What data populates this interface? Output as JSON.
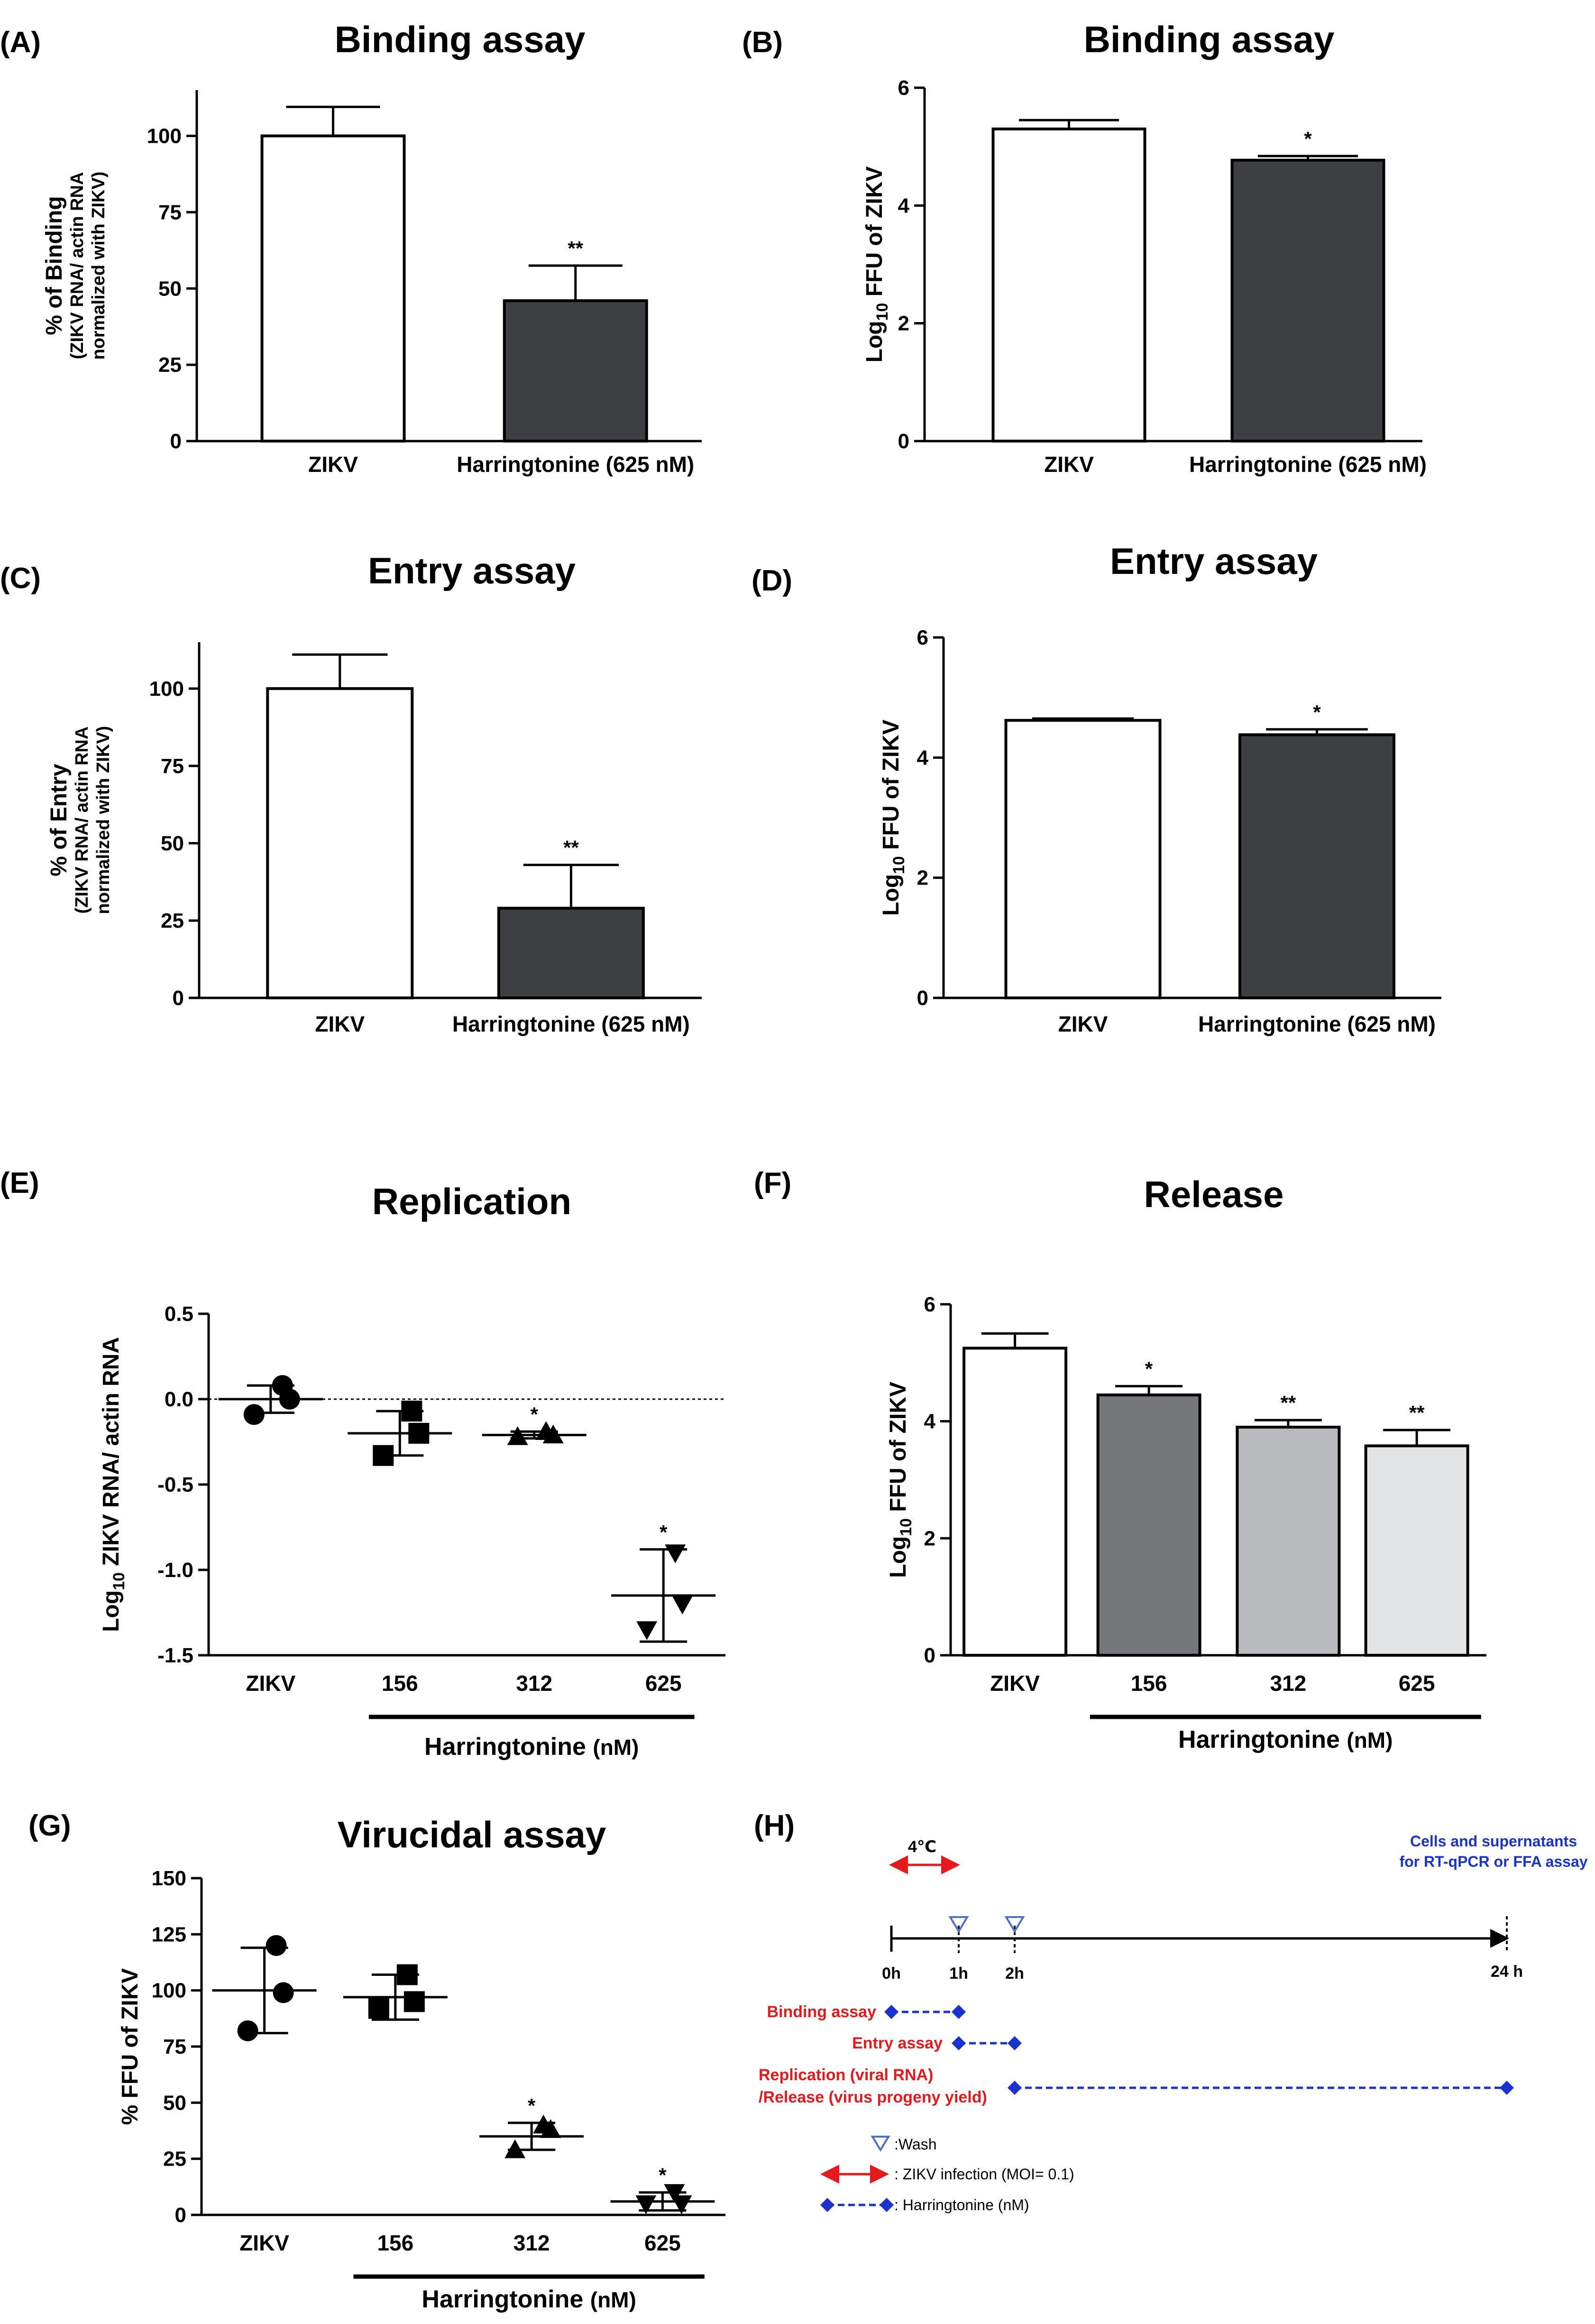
{
  "panel_labels": [
    "(A)",
    "(B)",
    "(C)",
    "(D)",
    "(E)",
    "(F)",
    "(G)",
    "(H)"
  ],
  "chart_data": [
    {
      "id": "A",
      "type": "bar",
      "title": "Binding assay",
      "ylabel_lines": [
        "% of Binding",
        "(ZIKV RNA/ actin RNA",
        "normalized with ZIKV)"
      ],
      "categories": [
        "ZIKV",
        "Harringtonine (625 nM)"
      ],
      "values": [
        100,
        46
      ],
      "errors": [
        9.5,
        11.5
      ],
      "significance": [
        "",
        "**"
      ],
      "fill": [
        "#ffffff",
        "#3d3f42"
      ],
      "ylim": [
        0,
        115
      ],
      "yticks": [
        0,
        25,
        50,
        75,
        100
      ]
    },
    {
      "id": "B",
      "type": "bar",
      "title": "Binding assay",
      "ylabel_lines": [
        "Log",
        "10",
        " FFU of ZIKV"
      ],
      "categories": [
        "ZIKV",
        "Harringtonine (625 nM)"
      ],
      "values": [
        5.3,
        4.77
      ],
      "errors": [
        0.15,
        0.07
      ],
      "significance": [
        "",
        "*"
      ],
      "fill": [
        "#ffffff",
        "#3d3f42"
      ],
      "ylim": [
        0,
        6
      ],
      "yticks": [
        0,
        2,
        4,
        6
      ]
    },
    {
      "id": "C",
      "type": "bar",
      "title": "Entry assay",
      "ylabel_lines": [
        "% of Entry",
        "(ZIKV RNA/ actin RNA",
        "normalized with ZIKV)"
      ],
      "categories": [
        "ZIKV",
        "Harringtonine (625 nM)"
      ],
      "values": [
        100,
        29
      ],
      "errors": [
        11,
        14
      ],
      "significance": [
        "",
        "**"
      ],
      "fill": [
        "#ffffff",
        "#3d3f42"
      ],
      "ylim": [
        0,
        115
      ],
      "yticks": [
        0,
        25,
        50,
        75,
        100
      ]
    },
    {
      "id": "D",
      "type": "bar",
      "title": "Entry assay",
      "ylabel_lines": [
        "Log",
        "10",
        " FFU of ZIKV"
      ],
      "categories": [
        "ZIKV",
        "Harringtonine (625 nM)"
      ],
      "values": [
        4.62,
        4.38
      ],
      "errors": [
        0.03,
        0.09
      ],
      "significance": [
        "",
        "*"
      ],
      "fill": [
        "#ffffff",
        "#3d3f42"
      ],
      "ylim": [
        0,
        6
      ],
      "yticks": [
        0,
        2,
        4,
        6
      ]
    },
    {
      "id": "E",
      "type": "scatter",
      "title": "Replication",
      "ylabel_lines": [
        "Log",
        "10",
        " ZIKV RNA/ actin RNA"
      ],
      "categories": [
        "ZIKV",
        "156",
        "312",
        "625"
      ],
      "group_label": "Harringtonine",
      "group_unit": "(nM)",
      "markers": [
        "circle",
        "square",
        "triangle-up",
        "triangle-down"
      ],
      "points": [
        [
          0.08,
          0.0,
          -0.09
        ],
        [
          -0.07,
          -0.2,
          -0.33
        ],
        [
          -0.19,
          -0.21,
          -0.22
        ],
        [
          -0.9,
          -1.2,
          -1.35
        ]
      ],
      "means": [
        0.0,
        -0.2,
        -0.21,
        -1.15
      ],
      "errors": [
        0.08,
        0.13,
        0.02,
        0.27
      ],
      "significance": [
        "",
        "",
        "*",
        "*"
      ],
      "ylim": [
        -1.5,
        0.5
      ],
      "yticks": [
        0.5,
        0.0,
        -0.5,
        -1.0,
        -1.5
      ],
      "ytick_labels": [
        "0.5",
        "0.0",
        "-0.5",
        "-1.0",
        "-1.5"
      ],
      "reference_line": 0
    },
    {
      "id": "F",
      "type": "bar",
      "title": "Release",
      "ylabel_lines": [
        "Log",
        "10",
        " FFU of ZIKV"
      ],
      "categories": [
        "ZIKV",
        "156",
        "312",
        "625"
      ],
      "group_label": "Harringtonine",
      "group_unit": "(nM)",
      "values": [
        5.25,
        4.45,
        3.9,
        3.58
      ],
      "errors": [
        0.25,
        0.15,
        0.12,
        0.27
      ],
      "significance": [
        "",
        "*",
        "**",
        "**"
      ],
      "fill": [
        "#ffffff",
        "#76777a",
        "#b9babd",
        "#e3e4e6"
      ],
      "ylim": [
        0,
        6
      ],
      "yticks": [
        0,
        2,
        4,
        6
      ]
    },
    {
      "id": "G",
      "type": "scatter",
      "title": "Virucidal assay",
      "ylabel_lines": [
        "% FFU of ZIKV"
      ],
      "categories": [
        "ZIKV",
        "156",
        "312",
        "625"
      ],
      "group_label": "Harringtonine",
      "group_unit": "(nM)",
      "markers": [
        "circle",
        "square",
        "triangle-up",
        "triangle-down"
      ],
      "points": [
        [
          120,
          99,
          82
        ],
        [
          107,
          95,
          92
        ],
        [
          40,
          38,
          29
        ],
        [
          10,
          5,
          5
        ]
      ],
      "means": [
        100,
        97,
        35,
        6
      ],
      "errors": [
        19,
        10,
        6,
        4
      ],
      "significance": [
        "",
        "",
        "*",
        "*"
      ],
      "ylim": [
        0,
        150
      ],
      "yticks": [
        0,
        25,
        50,
        75,
        100,
        125,
        150
      ]
    }
  ],
  "timeline": {
    "temp_label": "4℃",
    "hour_labels": [
      "0h",
      "1h",
      "2h",
      "24 h"
    ],
    "collect_label_lines": [
      "Cells and supernatants",
      "for RT-qPCR or FFA assay"
    ],
    "rows": [
      {
        "label_lines": [
          "Binding assay"
        ]
      },
      {
        "label_lines": [
          "Entry assay"
        ]
      },
      {
        "label_lines": [
          "Replication (viral RNA)",
          "/Release (virus progeny yield)"
        ]
      }
    ],
    "legend": [
      ":Wash",
      ": ZIKV infection (MOI= 0.1)",
      ": Harringtonine (nM)"
    ],
    "colors": {
      "red": "#e41a1c",
      "blue": "#1a33cc",
      "wash": "#4a6fd0"
    }
  }
}
